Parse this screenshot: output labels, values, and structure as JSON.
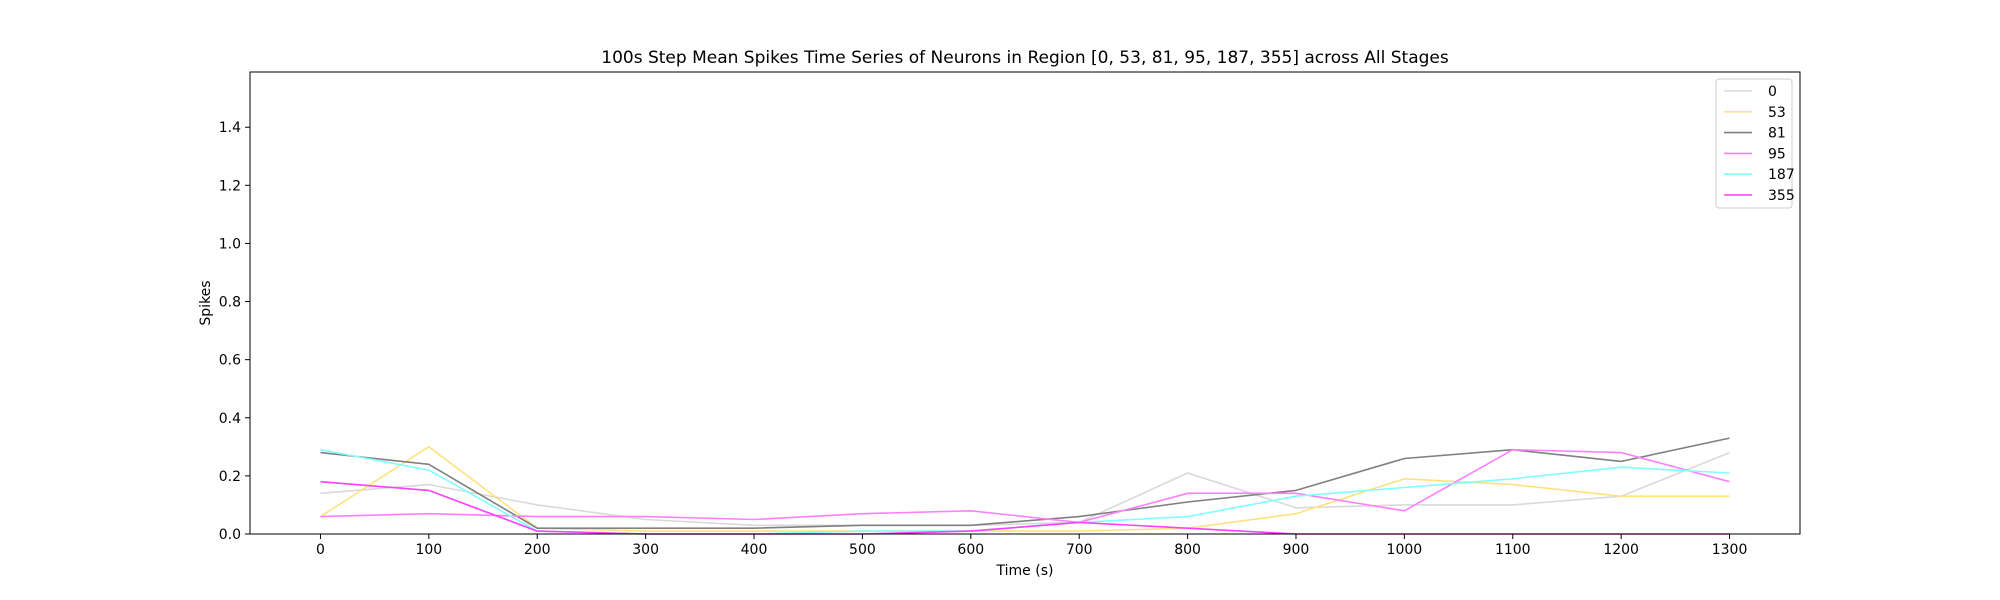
{
  "chart_data": {
    "type": "line",
    "title": "100s Step Mean Spikes Time Series of Neurons in Region [0, 53, 81, 95, 187, 355] across All Stages",
    "xlabel": "Time (s)",
    "ylabel": "Spikes",
    "x": [
      0,
      100,
      200,
      300,
      400,
      500,
      600,
      700,
      800,
      900,
      1000,
      1100,
      1200,
      1300
    ],
    "xticks": [
      0,
      100,
      200,
      300,
      400,
      500,
      600,
      700,
      800,
      900,
      1000,
      1100,
      1200,
      1300
    ],
    "yticks": [
      0.0,
      0.2,
      0.4,
      0.6,
      0.8,
      1.0,
      1.2,
      1.4
    ],
    "ytick_labels": [
      "0.0",
      "0.2",
      "0.4",
      "0.6",
      "0.8",
      "1.0",
      "1.2",
      "1.4"
    ],
    "xlim": [
      -65,
      1365
    ],
    "ylim": [
      0,
      1.59
    ],
    "grid": false,
    "legend_position": "top-right",
    "series": [
      {
        "name": "0",
        "color": "#d9d9d9",
        "values": [
          0.14,
          0.17,
          0.1,
          0.05,
          0.03,
          0.03,
          0.03,
          0.04,
          0.21,
          0.09,
          0.1,
          0.1,
          0.13,
          0.28
        ]
      },
      {
        "name": "53",
        "color": "#ffe27f",
        "values": [
          0.06,
          0.3,
          0.02,
          0.01,
          0.01,
          0.01,
          0.01,
          0.01,
          0.02,
          0.07,
          0.19,
          0.17,
          0.13,
          0.13
        ]
      },
      {
        "name": "81",
        "color": "#808080",
        "values": [
          0.28,
          0.24,
          0.02,
          0.02,
          0.02,
          0.03,
          0.03,
          0.06,
          0.11,
          0.15,
          0.26,
          0.29,
          0.25,
          0.33
        ]
      },
      {
        "name": "95",
        "color": "#ff7fff",
        "values": [
          0.06,
          0.07,
          0.06,
          0.06,
          0.05,
          0.07,
          0.08,
          0.04,
          0.14,
          0.14,
          0.08,
          0.29,
          0.28,
          0.18
        ]
      },
      {
        "name": "187",
        "color": "#7fffff",
        "values": [
          0.29,
          0.22,
          0.01,
          0.0,
          0.0,
          0.01,
          0.01,
          0.04,
          0.06,
          0.13,
          0.16,
          0.19,
          0.23,
          0.21
        ]
      },
      {
        "name": "355",
        "color": "#ff3fff",
        "values": [
          0.18,
          0.15,
          0.01,
          0.0,
          0.0,
          0.0,
          0.01,
          0.04,
          0.02,
          0.0,
          0.0,
          0.0,
          0.0,
          0.0
        ]
      }
    ]
  }
}
